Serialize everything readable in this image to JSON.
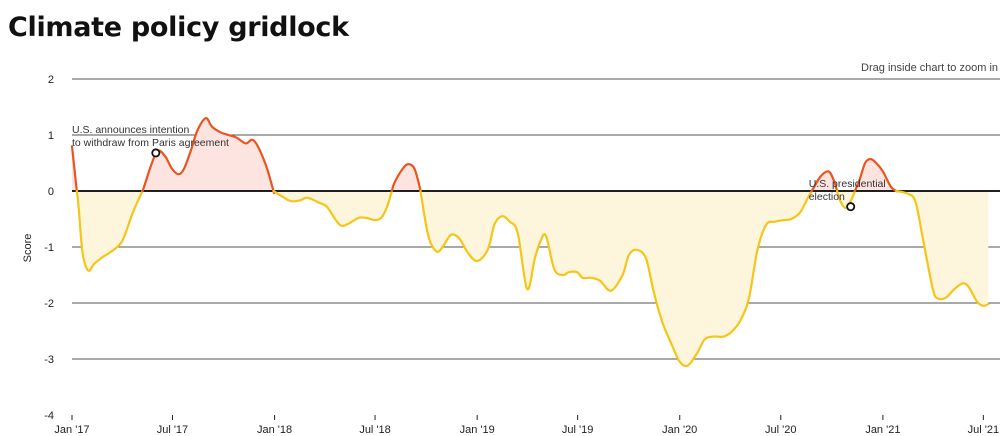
{
  "title": "Climate policy gridlock",
  "hint": "Drag inside chart to zoom in",
  "colors": {
    "positive_line": "#e85520",
    "negative_line": "#f5c518",
    "positive_fill": "#fde4e1",
    "negative_fill": "#fdf6dc",
    "grid": "#1a1a1a",
    "zero_line": "#000000"
  },
  "chart_data": {
    "type": "area",
    "title": "Climate policy gridlock",
    "ylabel": "Score",
    "xlabel": "",
    "ylim": [
      -4,
      2
    ],
    "yticks": [
      2,
      1,
      0,
      -1,
      -2,
      -3,
      -4
    ],
    "ytick_labels": [
      "2",
      "1",
      "0",
      "-1",
      "-2",
      "-3",
      "-4"
    ],
    "grid": true,
    "xlim": [
      "2017-01-01",
      "2021-07-31"
    ],
    "xticks": [
      "2017-01-01",
      "2017-07-01",
      "2018-01-01",
      "2018-07-01",
      "2019-01-01",
      "2019-07-01",
      "2020-01-01",
      "2020-07-01",
      "2021-01-01",
      "2021-07-01"
    ],
    "xtick_labels": [
      "Jan '17",
      "Jul '17",
      "Jan '18",
      "Jul '18",
      "Jan '19",
      "Jul '19",
      "Jan '20",
      "Jul '20",
      "Jan '21",
      "Jul '21"
    ],
    "series": [
      {
        "x": [
          "2017-01-01",
          "2017-01-13",
          "2017-01-20",
          "2017-01-30",
          "2017-02-10",
          "2017-02-25",
          "2017-03-10",
          "2017-04-01",
          "2017-04-20",
          "2017-05-10",
          "2017-05-25",
          "2017-06-05",
          "2017-06-18",
          "2017-06-30",
          "2017-07-12",
          "2017-07-22",
          "2017-08-03",
          "2017-08-15",
          "2017-08-30",
          "2017-09-10",
          "2017-09-25",
          "2017-10-10",
          "2017-10-25",
          "2017-11-10",
          "2017-11-25",
          "2017-12-15",
          "2017-12-30",
          "2018-01-15",
          "2018-01-30",
          "2018-02-15",
          "2018-03-01",
          "2018-03-20",
          "2018-04-05",
          "2018-04-20",
          "2018-05-01",
          "2018-05-15",
          "2018-06-01",
          "2018-06-15",
          "2018-07-01",
          "2018-07-12",
          "2018-07-22",
          "2018-08-05",
          "2018-08-20",
          "2018-08-30",
          "2018-09-10",
          "2018-09-20",
          "2018-10-05",
          "2018-10-20",
          "2018-11-01",
          "2018-11-15",
          "2018-11-30",
          "2018-12-15",
          "2019-01-01",
          "2019-01-20",
          "2019-02-01",
          "2019-02-15",
          "2019-03-01",
          "2019-03-15",
          "2019-04-01",
          "2019-04-15",
          "2019-04-25",
          "2019-05-05",
          "2019-05-20",
          "2019-06-05",
          "2019-06-15",
          "2019-06-30",
          "2019-07-10",
          "2019-07-25",
          "2019-08-10",
          "2019-08-30",
          "2019-09-20",
          "2019-10-01",
          "2019-10-15",
          "2019-11-01",
          "2019-11-15",
          "2019-12-01",
          "2019-12-20",
          "2020-01-01",
          "2020-01-15",
          "2020-02-01",
          "2020-02-15",
          "2020-03-01",
          "2020-03-20",
          "2020-04-05",
          "2020-04-20",
          "2020-05-05",
          "2020-05-20",
          "2020-06-05",
          "2020-06-20",
          "2020-07-05",
          "2020-07-20",
          "2020-08-05",
          "2020-08-20",
          "2020-09-10",
          "2020-09-25",
          "2020-10-05",
          "2020-10-15",
          "2020-10-25",
          "2020-11-04",
          "2020-11-20",
          "2020-11-30",
          "2020-12-10",
          "2020-12-20",
          "2021-01-01",
          "2021-01-15",
          "2021-01-25",
          "2021-02-15",
          "2021-03-01",
          "2021-03-15",
          "2021-04-01",
          "2021-04-10",
          "2021-04-25",
          "2021-05-10",
          "2021-05-25",
          "2021-06-05",
          "2021-06-20",
          "2021-07-01",
          "2021-07-10"
        ],
        "values": [
          0.8,
          -0.3,
          -1.1,
          -1.42,
          -1.3,
          -1.18,
          -1.1,
          -0.9,
          -0.4,
          0.05,
          0.5,
          0.72,
          0.62,
          0.4,
          0.3,
          0.4,
          0.72,
          1.08,
          1.3,
          1.15,
          1.05,
          1.0,
          0.95,
          0.85,
          0.9,
          0.5,
          0.0,
          -0.1,
          -0.18,
          -0.17,
          -0.12,
          -0.2,
          -0.28,
          -0.5,
          -0.62,
          -0.58,
          -0.48,
          -0.48,
          -0.52,
          -0.48,
          -0.3,
          0.15,
          0.4,
          0.48,
          0.4,
          0.05,
          -0.8,
          -1.08,
          -0.98,
          -0.78,
          -0.85,
          -1.1,
          -1.25,
          -1.05,
          -0.6,
          -0.45,
          -0.55,
          -0.75,
          -1.75,
          -1.2,
          -0.9,
          -0.8,
          -1.4,
          -1.5,
          -1.45,
          -1.45,
          -1.55,
          -1.55,
          -1.6,
          -1.78,
          -1.5,
          -1.15,
          -1.05,
          -1.2,
          -1.8,
          -2.35,
          -2.8,
          -3.05,
          -3.12,
          -2.9,
          -2.65,
          -2.6,
          -2.6,
          -2.5,
          -2.3,
          -1.9,
          -1.05,
          -0.6,
          -0.55,
          -0.52,
          -0.5,
          -0.38,
          -0.1,
          0.25,
          0.35,
          0.18,
          -0.15,
          -0.3,
          -0.18,
          0.2,
          0.5,
          0.57,
          0.5,
          0.35,
          0.08,
          0.0,
          -0.05,
          -0.2,
          -0.9,
          -1.75,
          -1.92,
          -1.9,
          -1.75,
          -1.65,
          -1.72,
          -1.98,
          -2.05,
          -2.02
        ]
      }
    ],
    "annotations": [
      {
        "date": "2017-06-01",
        "value": 0.68,
        "lines": [
          "U.S. announces intention",
          "to withdraw from Paris agreement"
        ]
      },
      {
        "date": "2020-11-04",
        "value": -0.28,
        "lines": [
          "U.S. presidential",
          "election"
        ]
      }
    ]
  }
}
